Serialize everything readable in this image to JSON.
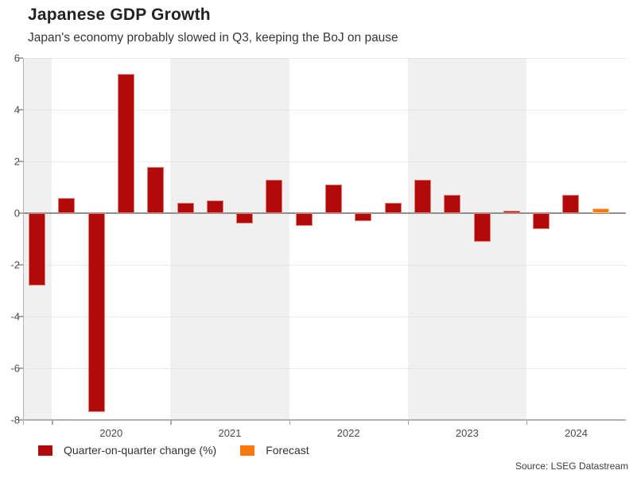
{
  "header": {
    "title": "Japanese GDP Growth",
    "subtitle": "Japan's economy probably slowed in Q3, keeping the BoJ on pause"
  },
  "legend": [
    {
      "label": "Quarter-on-quarter change (%)",
      "color": "#b20a0a"
    },
    {
      "label": "Forecast",
      "color": "#fb790f"
    }
  ],
  "source": "Source: LSEG Datastream",
  "chart_data": {
    "type": "bar",
    "title": "Japanese GDP Growth",
    "subtitle": "Japan's economy probably slowed in Q3, keeping the BoJ on pause",
    "ylabel": "",
    "xlabel": "",
    "ylim": [
      -8,
      6
    ],
    "y_ticks": [
      6,
      4,
      2,
      0,
      -2,
      -4,
      -6,
      -8
    ],
    "grid": "dotted-horizontal",
    "legend_position": "bottom-left",
    "year_labels": [
      "2020",
      "2021",
      "2022",
      "2023",
      "2024"
    ],
    "shaded_years": [
      2019,
      2021,
      2023
    ],
    "series": [
      {
        "year": 2019,
        "quarter": "Q4",
        "value": -2.8,
        "forecast": false
      },
      {
        "year": 2020,
        "quarter": "Q1",
        "value": 0.6,
        "forecast": false
      },
      {
        "year": 2020,
        "quarter": "Q2",
        "value": -7.7,
        "forecast": false
      },
      {
        "year": 2020,
        "quarter": "Q3",
        "value": 5.4,
        "forecast": false
      },
      {
        "year": 2020,
        "quarter": "Q4",
        "value": 1.8,
        "forecast": false
      },
      {
        "year": 2021,
        "quarter": "Q1",
        "value": 0.4,
        "forecast": false
      },
      {
        "year": 2021,
        "quarter": "Q2",
        "value": 0.5,
        "forecast": false
      },
      {
        "year": 2021,
        "quarter": "Q3",
        "value": -0.4,
        "forecast": false
      },
      {
        "year": 2021,
        "quarter": "Q4",
        "value": 1.3,
        "forecast": false
      },
      {
        "year": 2022,
        "quarter": "Q1",
        "value": -0.5,
        "forecast": false
      },
      {
        "year": 2022,
        "quarter": "Q2",
        "value": 1.1,
        "forecast": false
      },
      {
        "year": 2022,
        "quarter": "Q3",
        "value": -0.3,
        "forecast": false
      },
      {
        "year": 2022,
        "quarter": "Q4",
        "value": 0.4,
        "forecast": false
      },
      {
        "year": 2023,
        "quarter": "Q1",
        "value": 1.3,
        "forecast": false
      },
      {
        "year": 2023,
        "quarter": "Q2",
        "value": 0.7,
        "forecast": false
      },
      {
        "year": 2023,
        "quarter": "Q3",
        "value": -1.1,
        "forecast": false
      },
      {
        "year": 2023,
        "quarter": "Q4",
        "value": 0.1,
        "forecast": false
      },
      {
        "year": 2024,
        "quarter": "Q1",
        "value": -0.6,
        "forecast": false
      },
      {
        "year": 2024,
        "quarter": "Q2",
        "value": 0.7,
        "forecast": false
      },
      {
        "year": 2024,
        "quarter": "Q3",
        "value": 0.2,
        "forecast": true
      }
    ],
    "colors": {
      "bar": "#b20a0a",
      "bar_border": "rgba(255,190,170,0.65)",
      "forecast": "#fb790f",
      "forecast_border": "rgba(255,225,185,0.8)",
      "band": "#f0f0f0",
      "gridline": "#d9d9d9",
      "zero_line": "#8f8f8f",
      "axis": "#b3b3b3",
      "tick": "#a8a8a8",
      "axis_text": "#4a4a4a"
    }
  }
}
